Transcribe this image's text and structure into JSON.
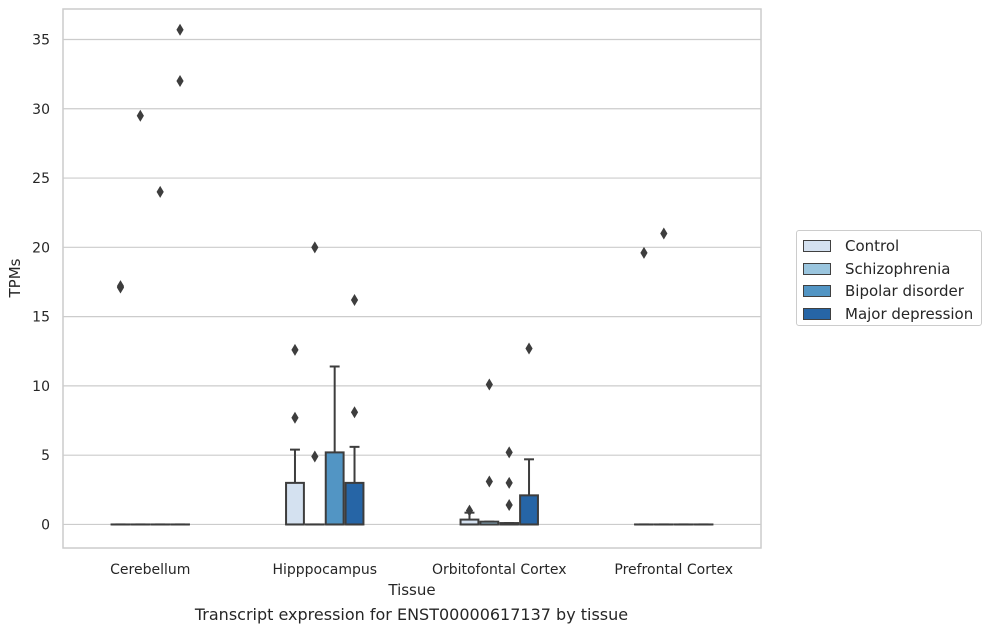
{
  "chart_data": {
    "type": "box",
    "title": "",
    "caption": "Transcript expression for ENST00000617137 by tissue",
    "xlabel": "Tissue",
    "ylabel": "TPMs",
    "ylim": [
      -1.7,
      37.2
    ],
    "yticks": [
      0,
      5,
      10,
      15,
      20,
      25,
      30,
      35
    ],
    "ytick_labels": [
      "0",
      "5",
      "10",
      "15",
      "20",
      "25",
      "30",
      "35"
    ],
    "grid": "horizontal",
    "legend_position": "right",
    "categories": [
      "Cerebellum",
      "Hipppocampus",
      "Orbitofontal Cortex",
      "Prefrontal Cortex"
    ],
    "series": [
      {
        "name": "Control",
        "color": "#d4e1f0",
        "boxes": [
          {
            "q1": 0,
            "median": 0,
            "q3": 0,
            "whisker_low": 0,
            "whisker_high": 0,
            "outliers": [
              17.1,
              17.2
            ]
          },
          {
            "q1": 0,
            "median": 0,
            "q3": 3.0,
            "whisker_low": 0,
            "whisker_high": 5.4,
            "outliers": [
              7.7,
              12.6
            ]
          },
          {
            "q1": 0,
            "median": 0,
            "q3": 0.35,
            "whisker_low": 0,
            "whisker_high": 0.85,
            "outliers": [
              1.0
            ]
          },
          {
            "q1": 0,
            "median": 0,
            "q3": 0,
            "whisker_low": 0,
            "whisker_high": 0,
            "outliers": [
              19.6
            ]
          }
        ]
      },
      {
        "name": "Schizophrenia",
        "color": "#9ac5de",
        "boxes": [
          {
            "q1": 0,
            "median": 0,
            "q3": 0,
            "whisker_low": 0,
            "whisker_high": 0,
            "outliers": [
              29.5
            ]
          },
          {
            "q1": 0,
            "median": 0,
            "q3": 0,
            "whisker_low": 0,
            "whisker_high": 0,
            "outliers": [
              4.9,
              20.0
            ]
          },
          {
            "q1": 0,
            "median": 0,
            "q3": 0.2,
            "whisker_low": 0,
            "whisker_high": 0.2,
            "outliers": [
              3.1,
              10.1
            ]
          },
          {
            "q1": 0,
            "median": 0,
            "q3": 0,
            "whisker_low": 0,
            "whisker_high": 0,
            "outliers": [
              21.0
            ]
          }
        ]
      },
      {
        "name": "Bipolar disorder",
        "color": "#5295c4",
        "boxes": [
          {
            "q1": 0,
            "median": 0,
            "q3": 0,
            "whisker_low": 0,
            "whisker_high": 0,
            "outliers": [
              24.0
            ]
          },
          {
            "q1": 0,
            "median": 0,
            "q3": 5.2,
            "whisker_low": 0,
            "whisker_high": 11.4,
            "outliers": []
          },
          {
            "q1": 0,
            "median": 0,
            "q3": 0.1,
            "whisker_low": 0,
            "whisker_high": 0.1,
            "outliers": [
              1.4,
              3.0,
              5.2
            ]
          },
          {
            "q1": 0,
            "median": 0,
            "q3": 0,
            "whisker_low": 0,
            "whisker_high": 0,
            "outliers": []
          }
        ]
      },
      {
        "name": "Major depression",
        "color": "#2665a6",
        "boxes": [
          {
            "q1": 0,
            "median": 0,
            "q3": 0,
            "whisker_low": 0,
            "whisker_high": 0,
            "outliers": [
              32.0,
              35.7
            ]
          },
          {
            "q1": 0,
            "median": 0,
            "q3": 3.0,
            "whisker_low": 0,
            "whisker_high": 5.6,
            "outliers": [
              8.1,
              16.2
            ]
          },
          {
            "q1": 0,
            "median": 0,
            "q3": 2.1,
            "whisker_low": 0,
            "whisker_high": 4.7,
            "outliers": [
              12.7
            ]
          },
          {
            "q1": 0,
            "median": 0,
            "q3": 0,
            "whisker_low": 0,
            "whisker_high": 0,
            "outliers": []
          }
        ]
      }
    ]
  }
}
